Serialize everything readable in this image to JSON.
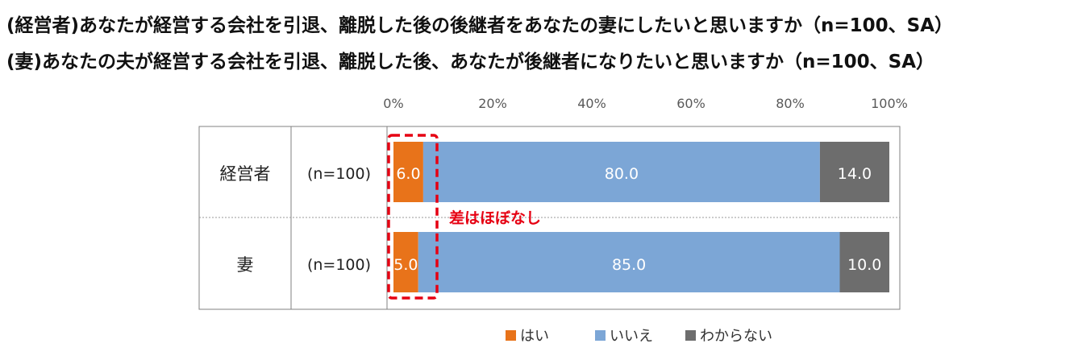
{
  "titles": {
    "line1": "(経営者)あなたが経営する会社を引退、離脱した後の後継者をあなたの妻にしたいと思いますか（n=100、SA）",
    "line2": "(妻)あなたの夫が経営する会社を引退、離脱した後、あなたが後継者になりたいと思いますか（n=100、SA）"
  },
  "chart_data": {
    "type": "bar",
    "orientation": "horizontal",
    "stacked": true,
    "xlim": [
      0,
      100
    ],
    "tick_labels": [
      "0%",
      "20%",
      "40%",
      "60%",
      "80%",
      "100%"
    ],
    "tick_values": [
      0,
      20,
      40,
      60,
      80,
      100
    ],
    "categories": [
      "経営者",
      "妻"
    ],
    "n_labels": [
      "(n=100)",
      "(n=100)"
    ],
    "series": [
      {
        "name": "はい",
        "color": "#e8731a",
        "values": [
          6.0,
          5.0
        ],
        "labels": [
          "6.0",
          "5.0"
        ]
      },
      {
        "name": "いいえ",
        "color": "#7ca6d6",
        "values": [
          80.0,
          85.0
        ],
        "labels": [
          "80.0",
          "85.0"
        ]
      },
      {
        "name": "わからない",
        "color": "#6d6d6d",
        "values": [
          14.0,
          10.0
        ],
        "labels": [
          "14.0",
          "10.0"
        ]
      }
    ],
    "annotation": "差はほぼなし",
    "legend_position": "bottom-center"
  }
}
